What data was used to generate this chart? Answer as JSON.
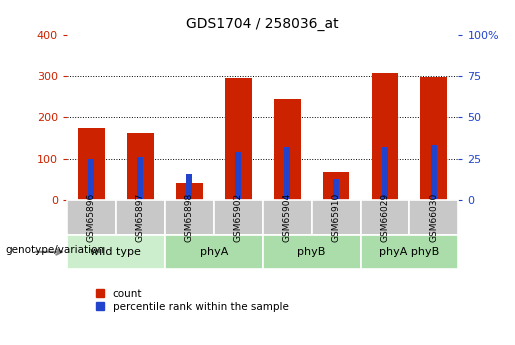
{
  "title": "GDS1704 / 258036_at",
  "samples": [
    "GSM65896",
    "GSM65897",
    "GSM65898",
    "GSM65902",
    "GSM65904",
    "GSM65910",
    "GSM66029",
    "GSM66030"
  ],
  "count_values": [
    175,
    163,
    42,
    295,
    245,
    68,
    307,
    298
  ],
  "percentile_values": [
    25,
    26,
    16,
    29,
    32,
    13,
    32,
    33
  ],
  "groups": [
    {
      "label": "wild type",
      "indices": [
        0,
        1
      ],
      "color": "#cceecc"
    },
    {
      "label": "phyA",
      "indices": [
        2,
        3
      ],
      "color": "#aaddaa"
    },
    {
      "label": "phyB",
      "indices": [
        4,
        5
      ],
      "color": "#aaddaa"
    },
    {
      "label": "phyA phyB",
      "indices": [
        6,
        7
      ],
      "color": "#aaddaa"
    }
  ],
  "count_color": "#cc2200",
  "percentile_color": "#2244cc",
  "left_ylim": [
    0,
    400
  ],
  "right_ylim": [
    0,
    100
  ],
  "left_yticks": [
    0,
    100,
    200,
    300,
    400
  ],
  "right_yticks": [
    0,
    25,
    50,
    75,
    100
  ],
  "right_yticklabels": [
    "0",
    "25",
    "50",
    "75",
    "100%"
  ],
  "grid_values": [
    100,
    200,
    300
  ],
  "red_bar_width": 0.55,
  "blue_bar_width": 0.12,
  "xlabel": "genotype/variation",
  "legend_count": "count",
  "legend_pct": "percentile rank within the sample",
  "tick_color_left": "#cc2200",
  "tick_color_right": "#2244cc",
  "sample_box_color": "#c8c8c8",
  "wild_type_color": "#e0e0e0",
  "green_color": "#aaddaa"
}
